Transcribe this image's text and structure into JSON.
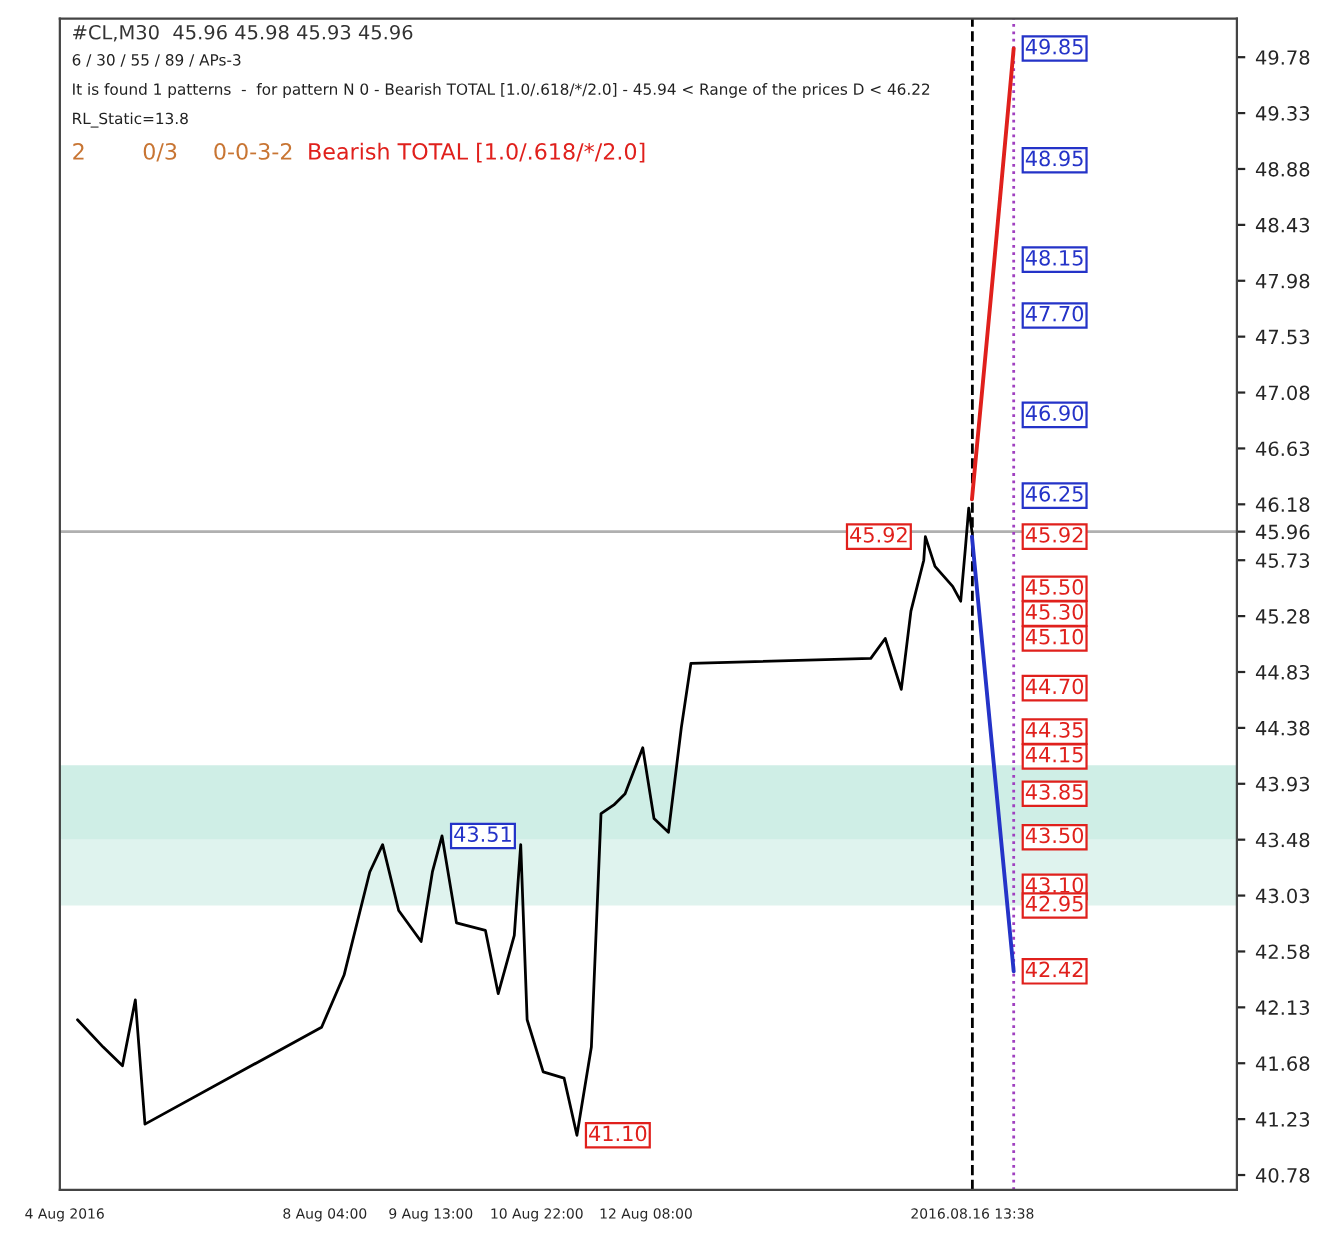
{
  "chart_data": {
    "type": "line",
    "title": "#CL,M30  45.96 45.98 45.93 45.96",
    "annotations": [
      "6 / 30 / 55 / 89 / APs-3",
      "It is found 1 patterns  -  for pattern N 0 - Bearish TOTAL [1.0/.618/*/2.0] - 45.94 < Range of the prices D < 46.22",
      "RL_Static=13.8",
      "2",
      "0/3",
      "0-0-3-2",
      "Bearish TOTAL [1.0/.618/*/2.0]",
      {
        "text": "43.51",
        "x": "2016-08-09T16:30",
        "y": 43.51
      },
      {
        "text": "41.10",
        "x": "2016-08-11T10:30",
        "y": 41.1
      },
      {
        "text": "45.92",
        "x": "2016-08-15T23:00",
        "y": 45.92
      },
      {
        "text": "49.85",
        "x": "2016-08-17T02:30",
        "y": 49.85
      },
      {
        "text": "48.95",
        "x": "2016-08-17T02:30",
        "y": 48.95
      },
      {
        "text": "48.15",
        "x": "2016-08-17T02:30",
        "y": 48.15
      },
      {
        "text": "47.70",
        "x": "2016-08-17T02:30",
        "y": 47.7
      },
      {
        "text": "46.90",
        "x": "2016-08-17T02:30",
        "y": 46.9
      },
      {
        "text": "46.25",
        "x": "2016-08-17T02:30",
        "y": 46.25
      },
      {
        "text": "45.92",
        "x": "2016-08-17T02:30",
        "y": 45.92
      },
      {
        "text": "45.50",
        "x": "2016-08-17T02:30",
        "y": 45.5
      },
      {
        "text": "45.30",
        "x": "2016-08-17T02:30",
        "y": 45.3
      },
      {
        "text": "45.10",
        "x": "2016-08-17T02:30",
        "y": 45.1
      },
      {
        "text": "44.70",
        "x": "2016-08-17T02:30",
        "y": 44.7
      },
      {
        "text": "44.35",
        "x": "2016-08-17T02:30",
        "y": 44.35
      },
      {
        "text": "44.15",
        "x": "2016-08-17T02:30",
        "y": 44.15
      },
      {
        "text": "43.85",
        "x": "2016-08-17T02:30",
        "y": 43.85
      },
      {
        "text": "43.50",
        "x": "2016-08-17T02:30",
        "y": 43.5
      },
      {
        "text": "43.10",
        "x": "2016-08-17T02:30",
        "y": 43.1
      },
      {
        "text": "42.95",
        "x": "2016-08-17T02:30",
        "y": 42.95
      },
      {
        "text": "42.42",
        "x": "2016-08-17T02:30",
        "y": 42.42
      }
    ],
    "series": [
      {
        "color": "#000000",
        "x": [
          "2016-08-04T23:00",
          "2016-08-05T07:00",
          "2016-08-05T13:00",
          "2016-08-05T17:00",
          "2016-08-05T20:00",
          "2016-08-08T03:00",
          "2016-08-08T10:00",
          "2016-08-08T18:00",
          "2016-08-08T22:00",
          "2016-08-09T03:00",
          "2016-08-09T10:00",
          "2016-08-09T13:30",
          "2016-08-09T16:30",
          "2016-08-09T21:00",
          "2016-08-10T06:00",
          "2016-08-10T10:00",
          "2016-08-10T15:00",
          "2016-08-10T17:00",
          "2016-08-10T19:00",
          "2016-08-11T00:00",
          "2016-08-11T06:30",
          "2016-08-11T10:30",
          "2016-08-11T15:00",
          "2016-08-11T18:00",
          "2016-08-11T22:00",
          "2016-08-12T01:30",
          "2016-08-12T07:00",
          "2016-08-12T10:30",
          "2016-08-12T15:00",
          "2016-08-12T19:00",
          "2016-08-12T22:00",
          "2016-08-15T06:00",
          "2016-08-15T10:30",
          "2016-08-15T15:30",
          "2016-08-15T18:30",
          "2016-08-15T22:30",
          "2016-08-15T23:00",
          "2016-08-16T02:00",
          "2016-08-16T07:30",
          "2016-08-16T10:00",
          "2016-08-16T11:30",
          "2016-08-16T12:30",
          "2016-08-16T13:30"
        ],
        "values": [
          42.03,
          41.81,
          41.66,
          42.19,
          41.19,
          41.97,
          42.39,
          43.22,
          43.44,
          42.91,
          42.66,
          43.22,
          43.51,
          42.81,
          42.75,
          42.24,
          42.71,
          43.44,
          42.03,
          41.61,
          41.56,
          41.1,
          41.81,
          43.69,
          43.76,
          43.85,
          44.22,
          43.65,
          43.54,
          44.38,
          44.9,
          44.94,
          45.1,
          44.69,
          45.32,
          45.73,
          45.92,
          45.68,
          45.52,
          45.4,
          45.84,
          46.15,
          45.96
        ]
      },
      {
        "color": "#e0201c",
        "x": [
          "2016-08-16T13:30",
          "2016-08-16T20:30",
          "2016-08-17T02:30"
        ],
        "values": [
          46.22,
          48.15,
          49.85
        ]
      },
      {
        "color": "#2433c8",
        "x": [
          "2016-08-16T13:30",
          "2016-08-17T02:30"
        ],
        "values": [
          45.92,
          42.42
        ]
      }
    ],
    "xlim": [
      "2016-08-04T17:30",
      "2016-08-20T00:00"
    ],
    "ylim": [
      40.66,
      50.09
    ],
    "xticks": [
      {
        "value": "2016-08-04T19:00",
        "label": "4 Aug 2016"
      },
      {
        "value": "2016-08-08T04:00",
        "label": "8 Aug 04:00"
      },
      {
        "value": "2016-08-09T13:00",
        "label": "9 Aug 13:00"
      },
      {
        "value": "2016-08-10T22:00",
        "label": "10 Aug 22:00"
      },
      {
        "value": "2016-08-12T08:00",
        "label": "12 Aug 08:00"
      },
      {
        "value": "2016-08-16T13:38",
        "label": "2016.08.16 13:38"
      }
    ],
    "yticks": [
      40.78,
      41.23,
      41.68,
      42.13,
      42.58,
      43.03,
      43.48,
      43.93,
      44.38,
      44.83,
      45.28,
      45.73,
      46.18,
      46.63,
      47.08,
      47.53,
      47.98,
      48.43,
      48.88,
      49.33,
      49.78,
      {
        "value": 45.96,
        "label": "45.96"
      }
    ],
    "ref_lines": [
      {
        "axis": "y",
        "value": 45.96,
        "color": "#b0b0b0",
        "line_style": "solid"
      },
      {
        "axis": "x",
        "value": "2016-08-16T13:38",
        "color": "#000000",
        "line_style": "dashed"
      },
      {
        "axis": "x",
        "value": "2016-08-17T02:30",
        "color": "#a040c0",
        "line_style": "dotted"
      }
    ],
    "bands": [
      {
        "axis": "y",
        "from": 43.48,
        "to": 44.08,
        "color": "#cfeee6"
      },
      {
        "axis": "y",
        "from": 42.95,
        "to": 43.48,
        "color": "#dff3ee"
      }
    ],
    "grid": false,
    "legend": false
  }
}
